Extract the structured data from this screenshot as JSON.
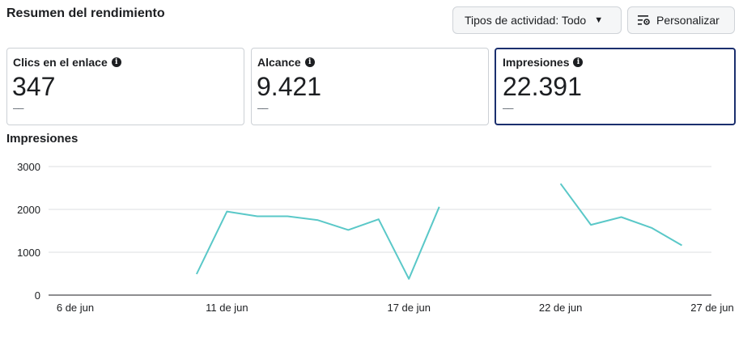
{
  "header": {
    "title": "Resumen del rendimiento",
    "activity_button": "Tipos de actividad: Todo",
    "customize_button": "Personalizar"
  },
  "metrics": [
    {
      "label": "Clics en el enlace",
      "value": "347",
      "delta": "––",
      "selected": false
    },
    {
      "label": "Alcance",
      "value": "9.421",
      "delta": "––",
      "selected": false
    },
    {
      "label": "Impresiones",
      "value": "22.391",
      "delta": "––",
      "selected": true
    }
  ],
  "chart_section": {
    "title": "Impresiones"
  },
  "colors": {
    "line": "#5ac8c8",
    "selected_border": "#1b2f6e",
    "grid": "#dddfe2"
  },
  "chart_data": {
    "type": "line",
    "title": "Impresiones",
    "xlabel": "",
    "ylabel": "",
    "ylim": [
      0,
      3000
    ],
    "yticks": [
      0,
      1000,
      2000,
      3000
    ],
    "xticks": [
      {
        "day": 6,
        "label": "6 de jun"
      },
      {
        "day": 11,
        "label": "11 de jun"
      },
      {
        "day": 17,
        "label": "17 de jun"
      },
      {
        "day": 22,
        "label": "22 de jun"
      },
      {
        "day": 27,
        "label": "27 de jun"
      }
    ],
    "series": [
      {
        "values": [
          {
            "day": 10,
            "y": 490
          },
          {
            "day": 11,
            "y": 1950
          },
          {
            "day": 12,
            "y": 1840
          },
          {
            "day": 13,
            "y": 1840
          },
          {
            "day": 14,
            "y": 1750
          },
          {
            "day": 15,
            "y": 1520
          },
          {
            "day": 16,
            "y": 1770
          },
          {
            "day": 17,
            "y": 380
          },
          {
            "day": 18,
            "y": 2060
          },
          {
            "day": 19,
            "y": null
          },
          {
            "day": 20,
            "y": null
          },
          {
            "day": 21,
            "y": null
          },
          {
            "day": 22,
            "y": 2600
          },
          {
            "day": 23,
            "y": 1640
          },
          {
            "day": 24,
            "y": 1820
          },
          {
            "day": 25,
            "y": 1570
          },
          {
            "day": 26,
            "y": 1160
          }
        ]
      }
    ]
  }
}
